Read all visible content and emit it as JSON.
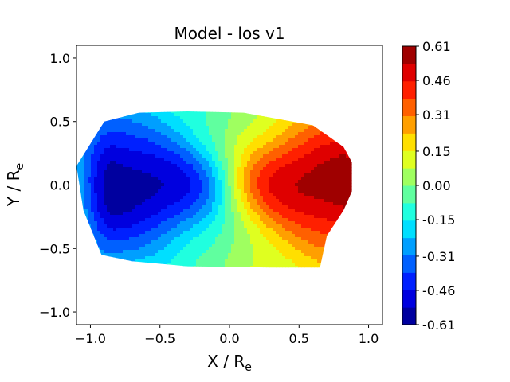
{
  "chart_data": {
    "type": "heatmap",
    "title": "Model - los v1",
    "xlabel": {
      "main": "X / R",
      "sub": "e"
    },
    "ylabel": {
      "main": "Y / R",
      "sub": "e"
    },
    "xlim": [
      -1.1,
      1.1
    ],
    "ylim": [
      -1.1,
      1.1
    ],
    "x_ticks": [
      -1.0,
      -0.5,
      0.0,
      0.5,
      1.0
    ],
    "x_tick_labels": [
      "−1.0",
      "−0.5",
      "0.0",
      "0.5",
      "1.0"
    ],
    "y_ticks": [
      -1.0,
      -0.5,
      0.0,
      0.5,
      1.0
    ],
    "y_tick_labels": [
      "−1.0",
      "−0.5",
      "0.0",
      "0.5",
      "1.0"
    ],
    "grid": false,
    "colormap": "jet",
    "colorbar": {
      "ticks": [
        -0.61,
        -0.46,
        -0.31,
        -0.15,
        0.0,
        0.15,
        0.31,
        0.46,
        0.61
      ],
      "tick_labels": [
        "-0.61",
        "-0.46",
        "-0.31",
        "-0.15",
        "0.00",
        "0.15",
        "0.31",
        "0.46",
        "0.61"
      ],
      "levels": 16,
      "range": [
        -0.61,
        0.61
      ]
    },
    "field": {
      "description": "line-of-sight velocity field, rotation about vertical axis",
      "extremes": [
        {
          "x": -0.83,
          "y": -0.02,
          "value": -0.61
        },
        {
          "x": 0.83,
          "y": -0.02,
          "value": 0.61
        }
      ],
      "outline": [
        [
          -0.9,
          0.5
        ],
        [
          -0.65,
          0.57
        ],
        [
          -0.3,
          0.58
        ],
        [
          0.1,
          0.57
        ],
        [
          0.6,
          0.47
        ],
        [
          0.82,
          0.3
        ],
        [
          0.88,
          0.18
        ],
        [
          0.88,
          -0.05
        ],
        [
          0.82,
          -0.2
        ],
        [
          0.7,
          -0.4
        ],
        [
          0.65,
          -0.65
        ],
        [
          0.3,
          -0.65
        ],
        [
          -0.3,
          -0.64
        ],
        [
          -0.7,
          -0.6
        ],
        [
          -0.92,
          -0.55
        ],
        [
          -1.05,
          -0.2
        ],
        [
          -1.1,
          0.15
        ]
      ]
    }
  }
}
